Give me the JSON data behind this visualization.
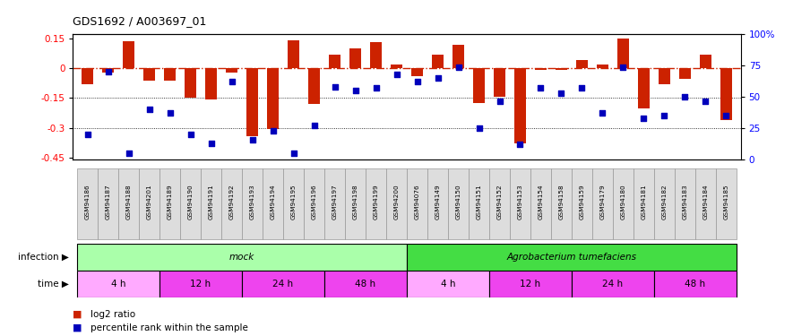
{
  "title": "GDS1692 / A003697_01",
  "samples": [
    "GSM94186",
    "GSM94187",
    "GSM94188",
    "GSM94201",
    "GSM94189",
    "GSM94190",
    "GSM94191",
    "GSM94192",
    "GSM94193",
    "GSM94194",
    "GSM94195",
    "GSM94196",
    "GSM94197",
    "GSM94198",
    "GSM94199",
    "GSM94200",
    "GSM94076",
    "GSM94149",
    "GSM94150",
    "GSM94151",
    "GSM94152",
    "GSM94153",
    "GSM94154",
    "GSM94158",
    "GSM94159",
    "GSM94179",
    "GSM94180",
    "GSM94181",
    "GSM94182",
    "GSM94183",
    "GSM94184",
    "GSM94185"
  ],
  "log2_ratio": [
    -0.08,
    -0.02,
    0.135,
    -0.06,
    -0.06,
    -0.15,
    -0.155,
    -0.02,
    -0.34,
    -0.305,
    0.14,
    -0.18,
    0.07,
    0.1,
    0.13,
    0.02,
    -0.04,
    0.07,
    0.12,
    -0.175,
    -0.145,
    -0.38,
    -0.01,
    -0.01,
    0.04,
    0.02,
    0.15,
    -0.2,
    -0.08,
    -0.055,
    0.07,
    -0.26
  ],
  "percentile_rank": [
    20,
    70,
    5,
    40,
    37,
    20,
    13,
    62,
    16,
    23,
    5,
    27,
    58,
    55,
    57,
    68,
    62,
    65,
    73,
    25,
    46,
    12,
    57,
    53,
    57,
    37,
    73,
    33,
    35,
    50,
    46,
    35
  ],
  "infection_groups": [
    {
      "label": "mock",
      "start": 0,
      "end": 15,
      "color": "#AAFFAA"
    },
    {
      "label": "Agrobacterium tumefaciens",
      "start": 16,
      "end": 31,
      "color": "#44DD44"
    }
  ],
  "time_groups": [
    {
      "label": "4 h",
      "start": 0,
      "end": 3,
      "color": "#FFAAFF"
    },
    {
      "label": "12 h",
      "start": 4,
      "end": 7,
      "color": "#EE44EE"
    },
    {
      "label": "24 h",
      "start": 8,
      "end": 11,
      "color": "#EE44EE"
    },
    {
      "label": "48 h",
      "start": 12,
      "end": 15,
      "color": "#EE44EE"
    },
    {
      "label": "4 h",
      "start": 16,
      "end": 19,
      "color": "#FFAAFF"
    },
    {
      "label": "12 h",
      "start": 20,
      "end": 23,
      "color": "#EE44EE"
    },
    {
      "label": "24 h",
      "start": 24,
      "end": 27,
      "color": "#EE44EE"
    },
    {
      "label": "48 h",
      "start": 28,
      "end": 31,
      "color": "#EE44EE"
    }
  ],
  "ylim_left": [
    -0.46,
    0.175
  ],
  "ylim_right": [
    0,
    100
  ],
  "yticks_left": [
    0.15,
    0.0,
    -0.15,
    -0.3,
    -0.45
  ],
  "yticks_right_vals": [
    100,
    75,
    50,
    25,
    0
  ],
  "yticks_right_labels": [
    "100%",
    "75",
    "50",
    "25",
    "0"
  ],
  "bar_color": "#CC2200",
  "dot_color": "#0000BB",
  "zero_line_color": "#CC2200",
  "legend_red": "log2 ratio",
  "legend_blue": "percentile rank within the sample"
}
